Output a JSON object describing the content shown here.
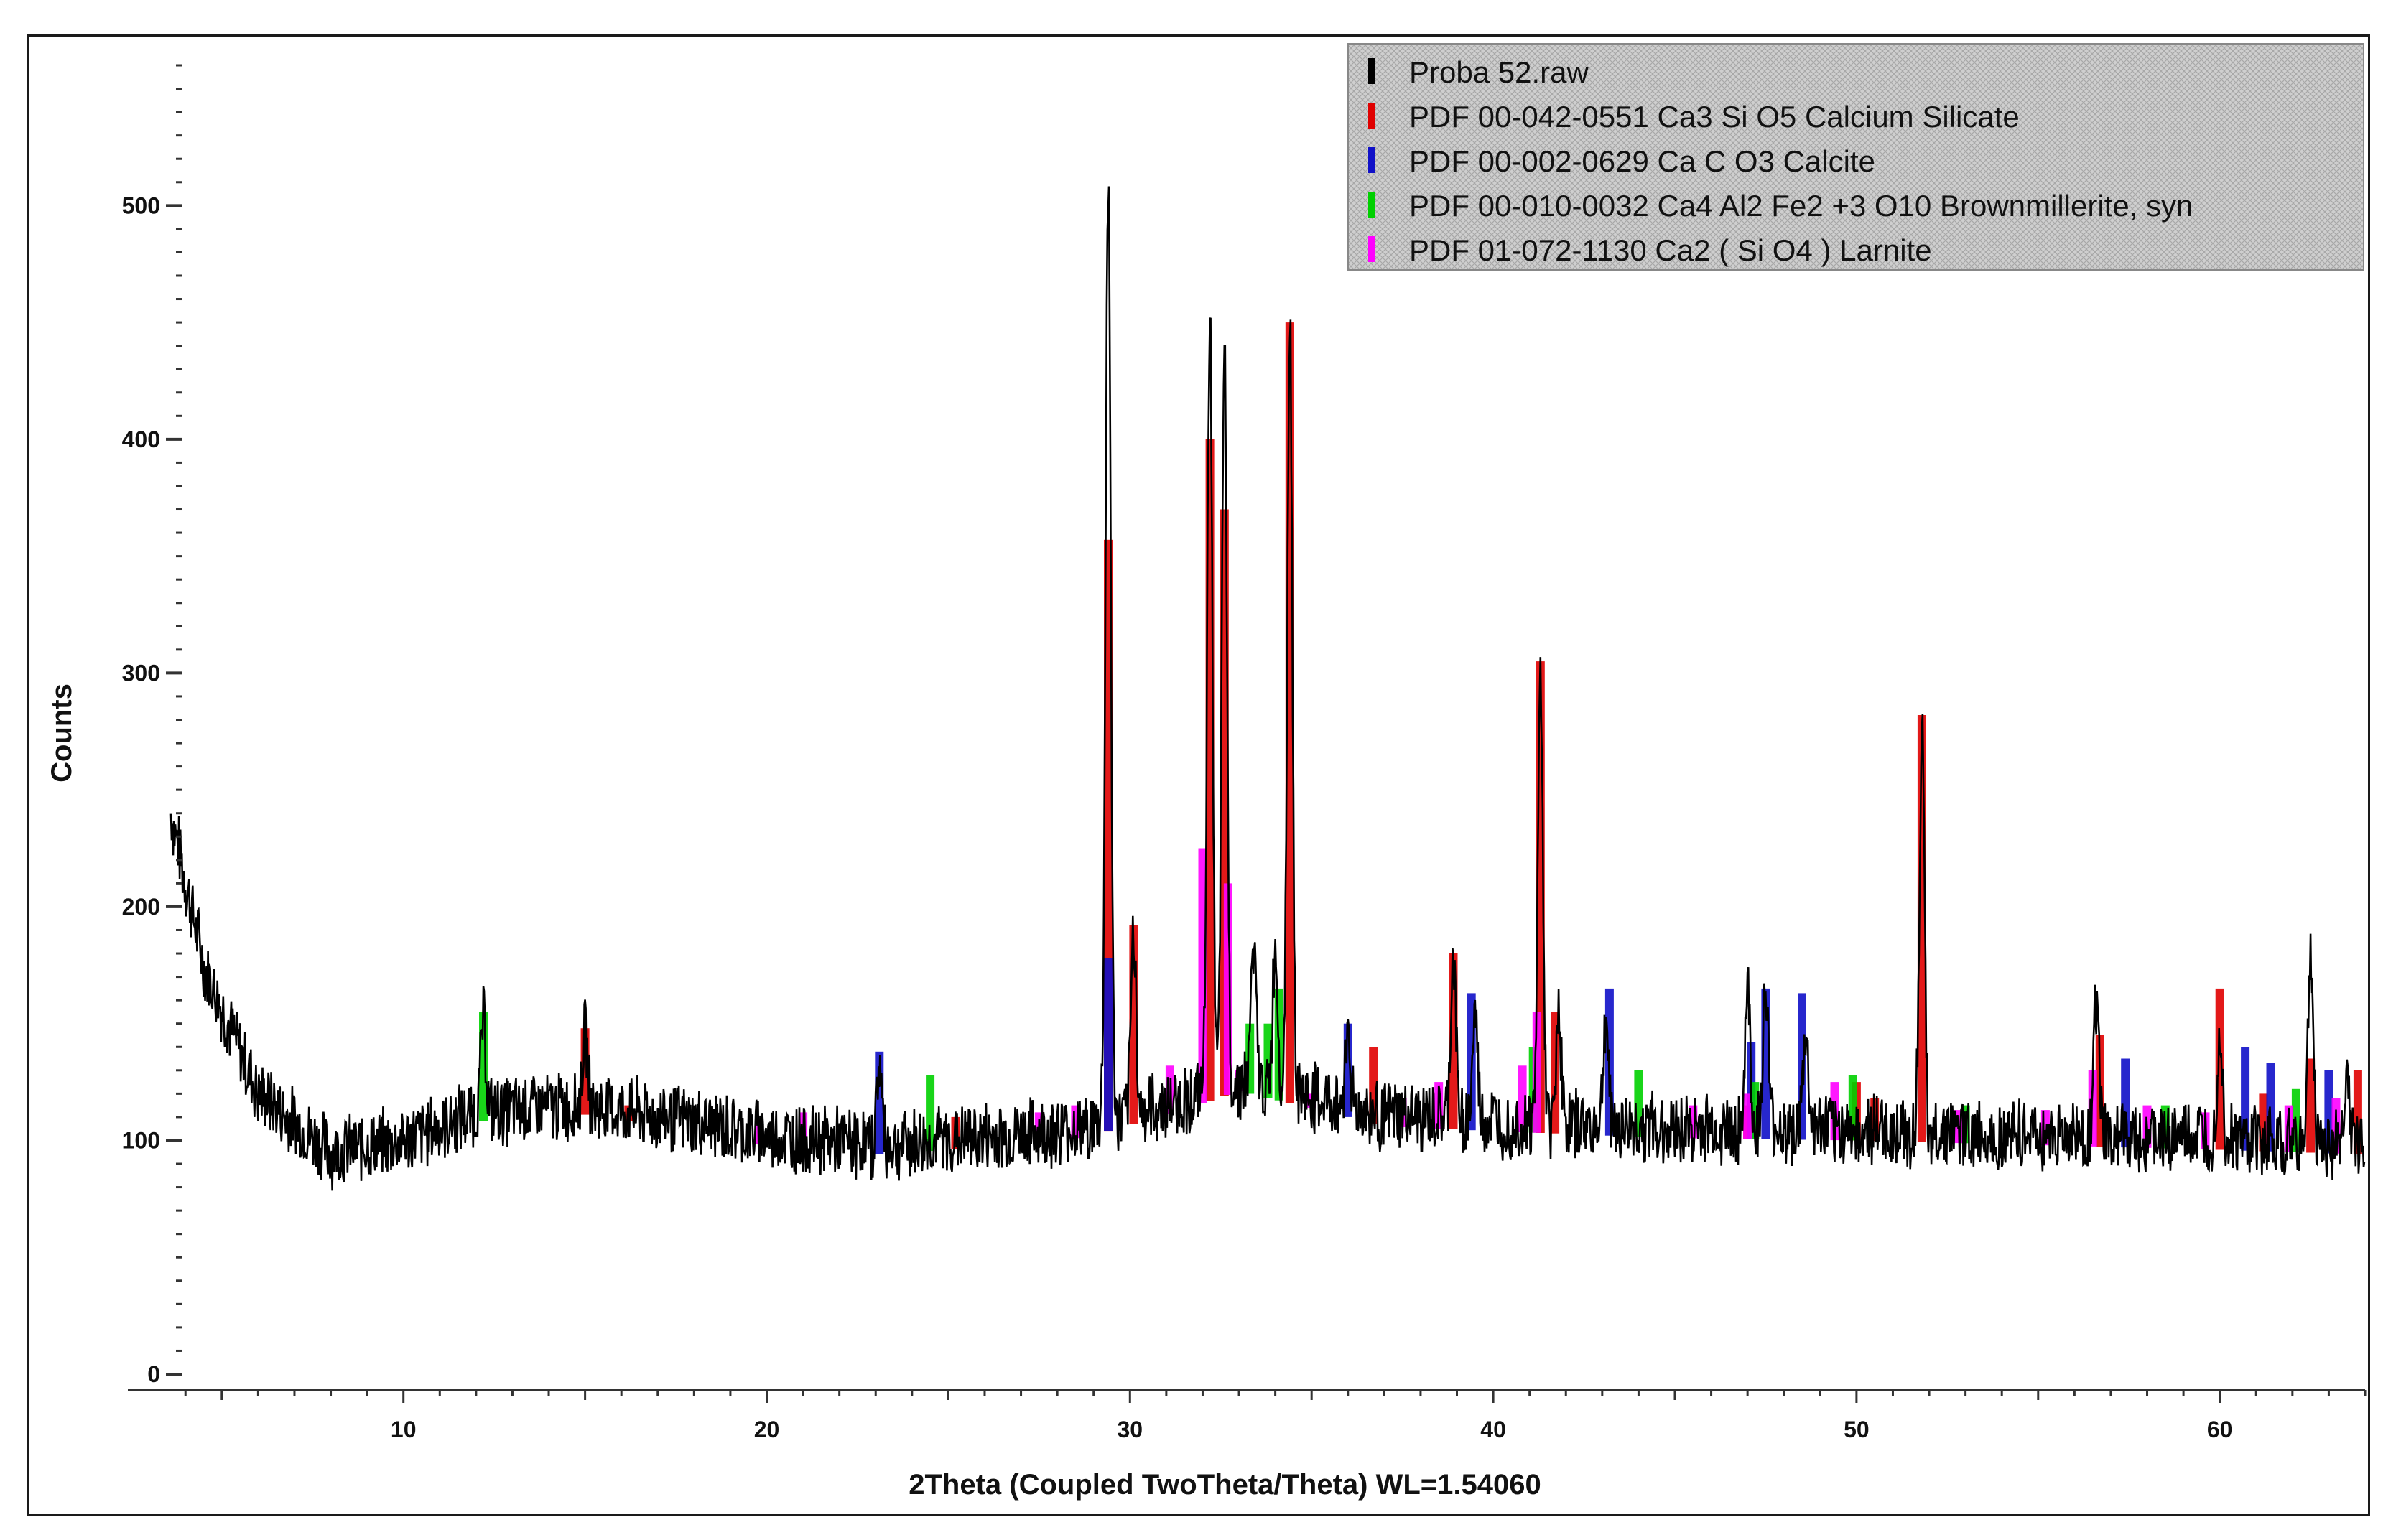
{
  "chart_data": {
    "type": "line",
    "xlabel": "2Theta (Coupled TwoTheta/Theta) WL=1.54060",
    "ylabel": "Counts",
    "xlim": [
      3.6,
      64
    ],
    "ylim": [
      0,
      560
    ],
    "x_ticks": [
      10,
      20,
      30,
      40,
      50,
      60
    ],
    "y_ticks": [
      0,
      100,
      200,
      300,
      400,
      500
    ],
    "grid": false,
    "legend_position": "top-right",
    "legend": [
      {
        "label": "Proba 52.raw",
        "color": "#000000"
      },
      {
        "label": "PDF 00-042-0551 Ca3 Si O5 Calcium Silicate",
        "color": "#e00000"
      },
      {
        "label": "PDF 00-002-0629 Ca C O3 Calcite",
        "color": "#1010c8"
      },
      {
        "label": "PDF 00-010-0032 Ca4 Al2 Fe2 +3 O10 Brownmillerite, syn",
        "color": "#00d000"
      },
      {
        "label": "PDF 01-072-1130 Ca2 ( Si O4 ) Larnite",
        "color": "#ff00ff"
      }
    ],
    "series": [
      {
        "name": "Proba 52.raw",
        "color": "#000000",
        "noise_amplitude": 12,
        "baseline": [
          [
            3.6,
            240
          ],
          [
            4.5,
            175
          ],
          [
            6,
            120
          ],
          [
            8,
            95
          ],
          [
            10,
            100
          ],
          [
            12,
            112
          ],
          [
            15,
            115
          ],
          [
            18,
            108
          ],
          [
            20,
            102
          ],
          [
            23,
            98
          ],
          [
            25,
            100
          ],
          [
            28,
            104
          ],
          [
            29,
            106
          ],
          [
            31,
            115
          ],
          [
            33,
            125
          ],
          [
            35,
            118
          ],
          [
            37,
            110
          ],
          [
            40,
            108
          ],
          [
            45,
            105
          ],
          [
            50,
            104
          ],
          [
            55,
            102
          ],
          [
            60,
            100
          ],
          [
            64,
            98
          ]
        ],
        "peaks": [
          [
            12.2,
            40
          ],
          [
            15.0,
            30
          ],
          [
            23.1,
            35
          ],
          [
            29.4,
            405
          ],
          [
            30.1,
            80
          ],
          [
            32.2,
            335
          ],
          [
            32.6,
            315
          ],
          [
            33.4,
            60
          ],
          [
            34.0,
            60
          ],
          [
            34.4,
            330
          ],
          [
            36.0,
            35
          ],
          [
            38.9,
            70
          ],
          [
            39.5,
            45
          ],
          [
            41.3,
            190
          ],
          [
            41.8,
            50
          ],
          [
            43.1,
            45
          ],
          [
            47.0,
            60
          ],
          [
            47.5,
            60
          ],
          [
            48.6,
            40
          ],
          [
            51.8,
            170
          ],
          [
            56.6,
            60
          ],
          [
            60.0,
            45
          ],
          [
            62.5,
            80
          ],
          [
            63.5,
            30
          ]
        ]
      },
      {
        "name": "PDF 00-042-0551 Ca3 Si O5 Calcium Silicate",
        "color": "#e00000",
        "sticks": [
          [
            15.0,
            148
          ],
          [
            16.2,
            115
          ],
          [
            25.2,
            110
          ],
          [
            29.4,
            357
          ],
          [
            30.1,
            192
          ],
          [
            32.2,
            400
          ],
          [
            32.6,
            370
          ],
          [
            34.4,
            450
          ],
          [
            36.7,
            140
          ],
          [
            38.9,
            180
          ],
          [
            41.3,
            305
          ],
          [
            41.7,
            155
          ],
          [
            47.0,
            115
          ],
          [
            50.0,
            125
          ],
          [
            50.5,
            118
          ],
          [
            51.8,
            282
          ],
          [
            56.7,
            145
          ],
          [
            60.0,
            165
          ],
          [
            61.2,
            120
          ],
          [
            62.5,
            135
          ],
          [
            63.8,
            130
          ]
        ]
      },
      {
        "name": "PDF 00-002-0629 Ca C O3 Calcite",
        "color": "#1010c8",
        "sticks": [
          [
            23.1,
            138
          ],
          [
            29.4,
            178
          ],
          [
            36.0,
            150
          ],
          [
            39.4,
            163
          ],
          [
            43.2,
            165
          ],
          [
            47.1,
            142
          ],
          [
            47.5,
            165
          ],
          [
            48.5,
            163
          ],
          [
            57.4,
            135
          ],
          [
            60.7,
            140
          ],
          [
            61.4,
            133
          ],
          [
            63.0,
            130
          ]
        ]
      },
      {
        "name": "PDF 00-010-0032 Ca4 Al2 Fe2 +3 O10 Brownmillerite, syn",
        "color": "#00d000",
        "sticks": [
          [
            12.2,
            155
          ],
          [
            24.5,
            128
          ],
          [
            33.3,
            150
          ],
          [
            33.8,
            150
          ],
          [
            34.1,
            165
          ],
          [
            41.1,
            140
          ],
          [
            44.0,
            130
          ],
          [
            47.2,
            125
          ],
          [
            49.9,
            128
          ],
          [
            53.0,
            115
          ],
          [
            58.5,
            115
          ],
          [
            62.1,
            122
          ]
        ]
      },
      {
        "name": "PDF 01-072-1130 Ca2 ( Si O4 ) Larnite",
        "color": "#ff00ff",
        "sticks": [
          [
            19.8,
            108
          ],
          [
            21.0,
            112
          ],
          [
            27.5,
            112
          ],
          [
            28.5,
            115
          ],
          [
            31.1,
            132
          ],
          [
            32.0,
            225
          ],
          [
            32.7,
            210
          ],
          [
            33.0,
            130
          ],
          [
            35.0,
            120
          ],
          [
            37.5,
            118
          ],
          [
            38.5,
            125
          ],
          [
            40.8,
            132
          ],
          [
            41.2,
            155
          ],
          [
            45.5,
            115
          ],
          [
            47.0,
            120
          ],
          [
            49.4,
            125
          ],
          [
            52.8,
            113
          ],
          [
            55.2,
            113
          ],
          [
            56.5,
            130
          ],
          [
            58.0,
            115
          ],
          [
            59.6,
            112
          ],
          [
            61.9,
            115
          ],
          [
            63.2,
            118
          ]
        ]
      }
    ]
  }
}
